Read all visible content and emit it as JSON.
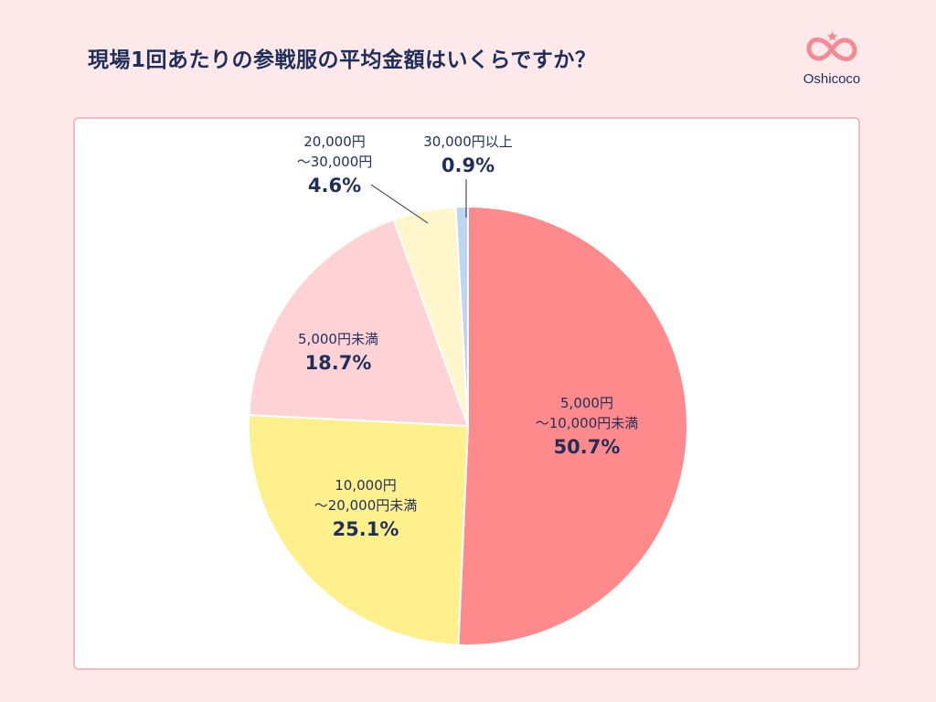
{
  "header": {
    "title": "現場1回あたりの参戦服の平均金額はいくらですか？",
    "brand": "Oshicoco",
    "brand_color": "#f58a94"
  },
  "chart_data": {
    "type": "pie",
    "title": "現場1回あたりの参戦服の平均金額はいくらですか？",
    "slices": [
      {
        "label_lines": [
          "5,000円",
          "〜10,000円未満"
        ],
        "value": 50.7,
        "value_label": "50.7%",
        "color": "#ff8a8c"
      },
      {
        "label_lines": [
          "10,000円",
          "〜20,000円未満"
        ],
        "value": 25.1,
        "value_label": "25.1%",
        "color": "#fff08e"
      },
      {
        "label_lines": [
          "5,000円未満"
        ],
        "value": 18.7,
        "value_label": "18.7%",
        "color": "#ffd3d5"
      },
      {
        "label_lines": [
          "20,000円",
          "〜30,000円"
        ],
        "value": 4.6,
        "value_label": "4.6%",
        "color": "#fff6cc"
      },
      {
        "label_lines": [
          "30,000円以上"
        ],
        "value": 0.9,
        "value_label": "0.9%",
        "color": "#bcd7ef"
      }
    ]
  }
}
